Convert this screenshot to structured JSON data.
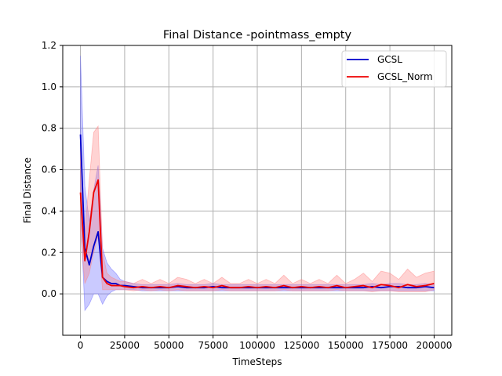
{
  "chart_data": {
    "type": "line",
    "title": "Final Distance -pointmass_empty",
    "xlabel": "TimeSteps",
    "ylabel": "Final Distance",
    "xlim": [
      -10000,
      210000
    ],
    "ylim": [
      -0.2,
      1.2
    ],
    "xticks": [
      0,
      25000,
      50000,
      75000,
      100000,
      125000,
      150000,
      175000,
      200000
    ],
    "yticks": [
      0.0,
      0.2,
      0.4,
      0.6,
      0.8,
      1.0,
      1.2
    ],
    "grid": true,
    "legend_position": "top-right",
    "x": [
      0,
      2500,
      5000,
      7500,
      10000,
      12500,
      15000,
      17500,
      20000,
      22500,
      25000,
      30000,
      35000,
      40000,
      45000,
      50000,
      55000,
      60000,
      65000,
      70000,
      75000,
      80000,
      85000,
      90000,
      95000,
      100000,
      105000,
      110000,
      115000,
      120000,
      125000,
      130000,
      135000,
      140000,
      145000,
      150000,
      155000,
      160000,
      165000,
      170000,
      175000,
      180000,
      185000,
      190000,
      195000,
      200000
    ],
    "series": [
      {
        "name": "GCSL",
        "color": "#0000cc",
        "fill": "#6666ff",
        "values": [
          0.77,
          0.22,
          0.14,
          0.23,
          0.3,
          0.08,
          0.06,
          0.05,
          0.05,
          0.04,
          0.04,
          0.035,
          0.03,
          0.03,
          0.03,
          0.03,
          0.035,
          0.03,
          0.03,
          0.03,
          0.035,
          0.03,
          0.03,
          0.03,
          0.03,
          0.03,
          0.03,
          0.03,
          0.03,
          0.03,
          0.03,
          0.03,
          0.03,
          0.03,
          0.03,
          0.03,
          0.03,
          0.03,
          0.035,
          0.03,
          0.035,
          0.035,
          0.03,
          0.03,
          0.035,
          0.03
        ],
        "lower": [
          0.4,
          -0.08,
          -0.05,
          0.0,
          0.0,
          -0.05,
          -0.01,
          0.01,
          0.02,
          0.02,
          0.02,
          0.02,
          0.015,
          0.015,
          0.015,
          0.015,
          0.015,
          0.015,
          0.015,
          0.015,
          0.015,
          0.015,
          0.015,
          0.015,
          0.015,
          0.015,
          0.015,
          0.015,
          0.015,
          0.015,
          0.015,
          0.015,
          0.015,
          0.015,
          0.015,
          0.015,
          0.015,
          0.015,
          0.015,
          0.015,
          0.015,
          0.015,
          0.015,
          0.015,
          0.015,
          0.015
        ],
        "upper": [
          1.15,
          0.52,
          0.35,
          0.5,
          0.62,
          0.22,
          0.15,
          0.12,
          0.1,
          0.07,
          0.06,
          0.05,
          0.045,
          0.045,
          0.045,
          0.045,
          0.05,
          0.045,
          0.045,
          0.045,
          0.05,
          0.045,
          0.045,
          0.045,
          0.045,
          0.045,
          0.045,
          0.045,
          0.045,
          0.045,
          0.045,
          0.045,
          0.045,
          0.045,
          0.045,
          0.045,
          0.045,
          0.045,
          0.05,
          0.045,
          0.05,
          0.05,
          0.045,
          0.045,
          0.05,
          0.045
        ]
      },
      {
        "name": "GCSL_Norm",
        "color": "#ee0000",
        "fill": "#ff8080",
        "values": [
          0.49,
          0.16,
          0.3,
          0.49,
          0.55,
          0.08,
          0.05,
          0.04,
          0.04,
          0.04,
          0.035,
          0.03,
          0.035,
          0.03,
          0.035,
          0.03,
          0.04,
          0.035,
          0.03,
          0.035,
          0.03,
          0.04,
          0.03,
          0.03,
          0.035,
          0.03,
          0.035,
          0.03,
          0.04,
          0.03,
          0.035,
          0.03,
          0.035,
          0.03,
          0.04,
          0.03,
          0.035,
          0.04,
          0.03,
          0.045,
          0.04,
          0.03,
          0.045,
          0.035,
          0.04,
          0.05
        ],
        "lower": [
          0.3,
          0.05,
          0.1,
          0.2,
          0.28,
          0.02,
          0.02,
          0.02,
          0.02,
          0.02,
          0.02,
          0.015,
          0.02,
          0.015,
          0.02,
          0.015,
          0.02,
          0.015,
          0.015,
          0.015,
          0.015,
          0.02,
          0.015,
          0.015,
          0.015,
          0.015,
          0.015,
          0.015,
          0.02,
          0.015,
          0.015,
          0.015,
          0.015,
          0.015,
          0.02,
          0.015,
          0.015,
          0.015,
          0.01,
          0.015,
          0.015,
          0.01,
          0.01,
          0.01,
          0.01,
          0.02
        ],
        "upper": [
          0.7,
          0.3,
          0.55,
          0.78,
          0.81,
          0.2,
          0.1,
          0.08,
          0.07,
          0.06,
          0.06,
          0.05,
          0.07,
          0.05,
          0.07,
          0.05,
          0.08,
          0.07,
          0.05,
          0.07,
          0.05,
          0.08,
          0.05,
          0.05,
          0.07,
          0.05,
          0.07,
          0.05,
          0.09,
          0.05,
          0.07,
          0.05,
          0.07,
          0.05,
          0.09,
          0.05,
          0.07,
          0.1,
          0.06,
          0.11,
          0.1,
          0.07,
          0.12,
          0.08,
          0.1,
          0.11
        ]
      }
    ]
  }
}
